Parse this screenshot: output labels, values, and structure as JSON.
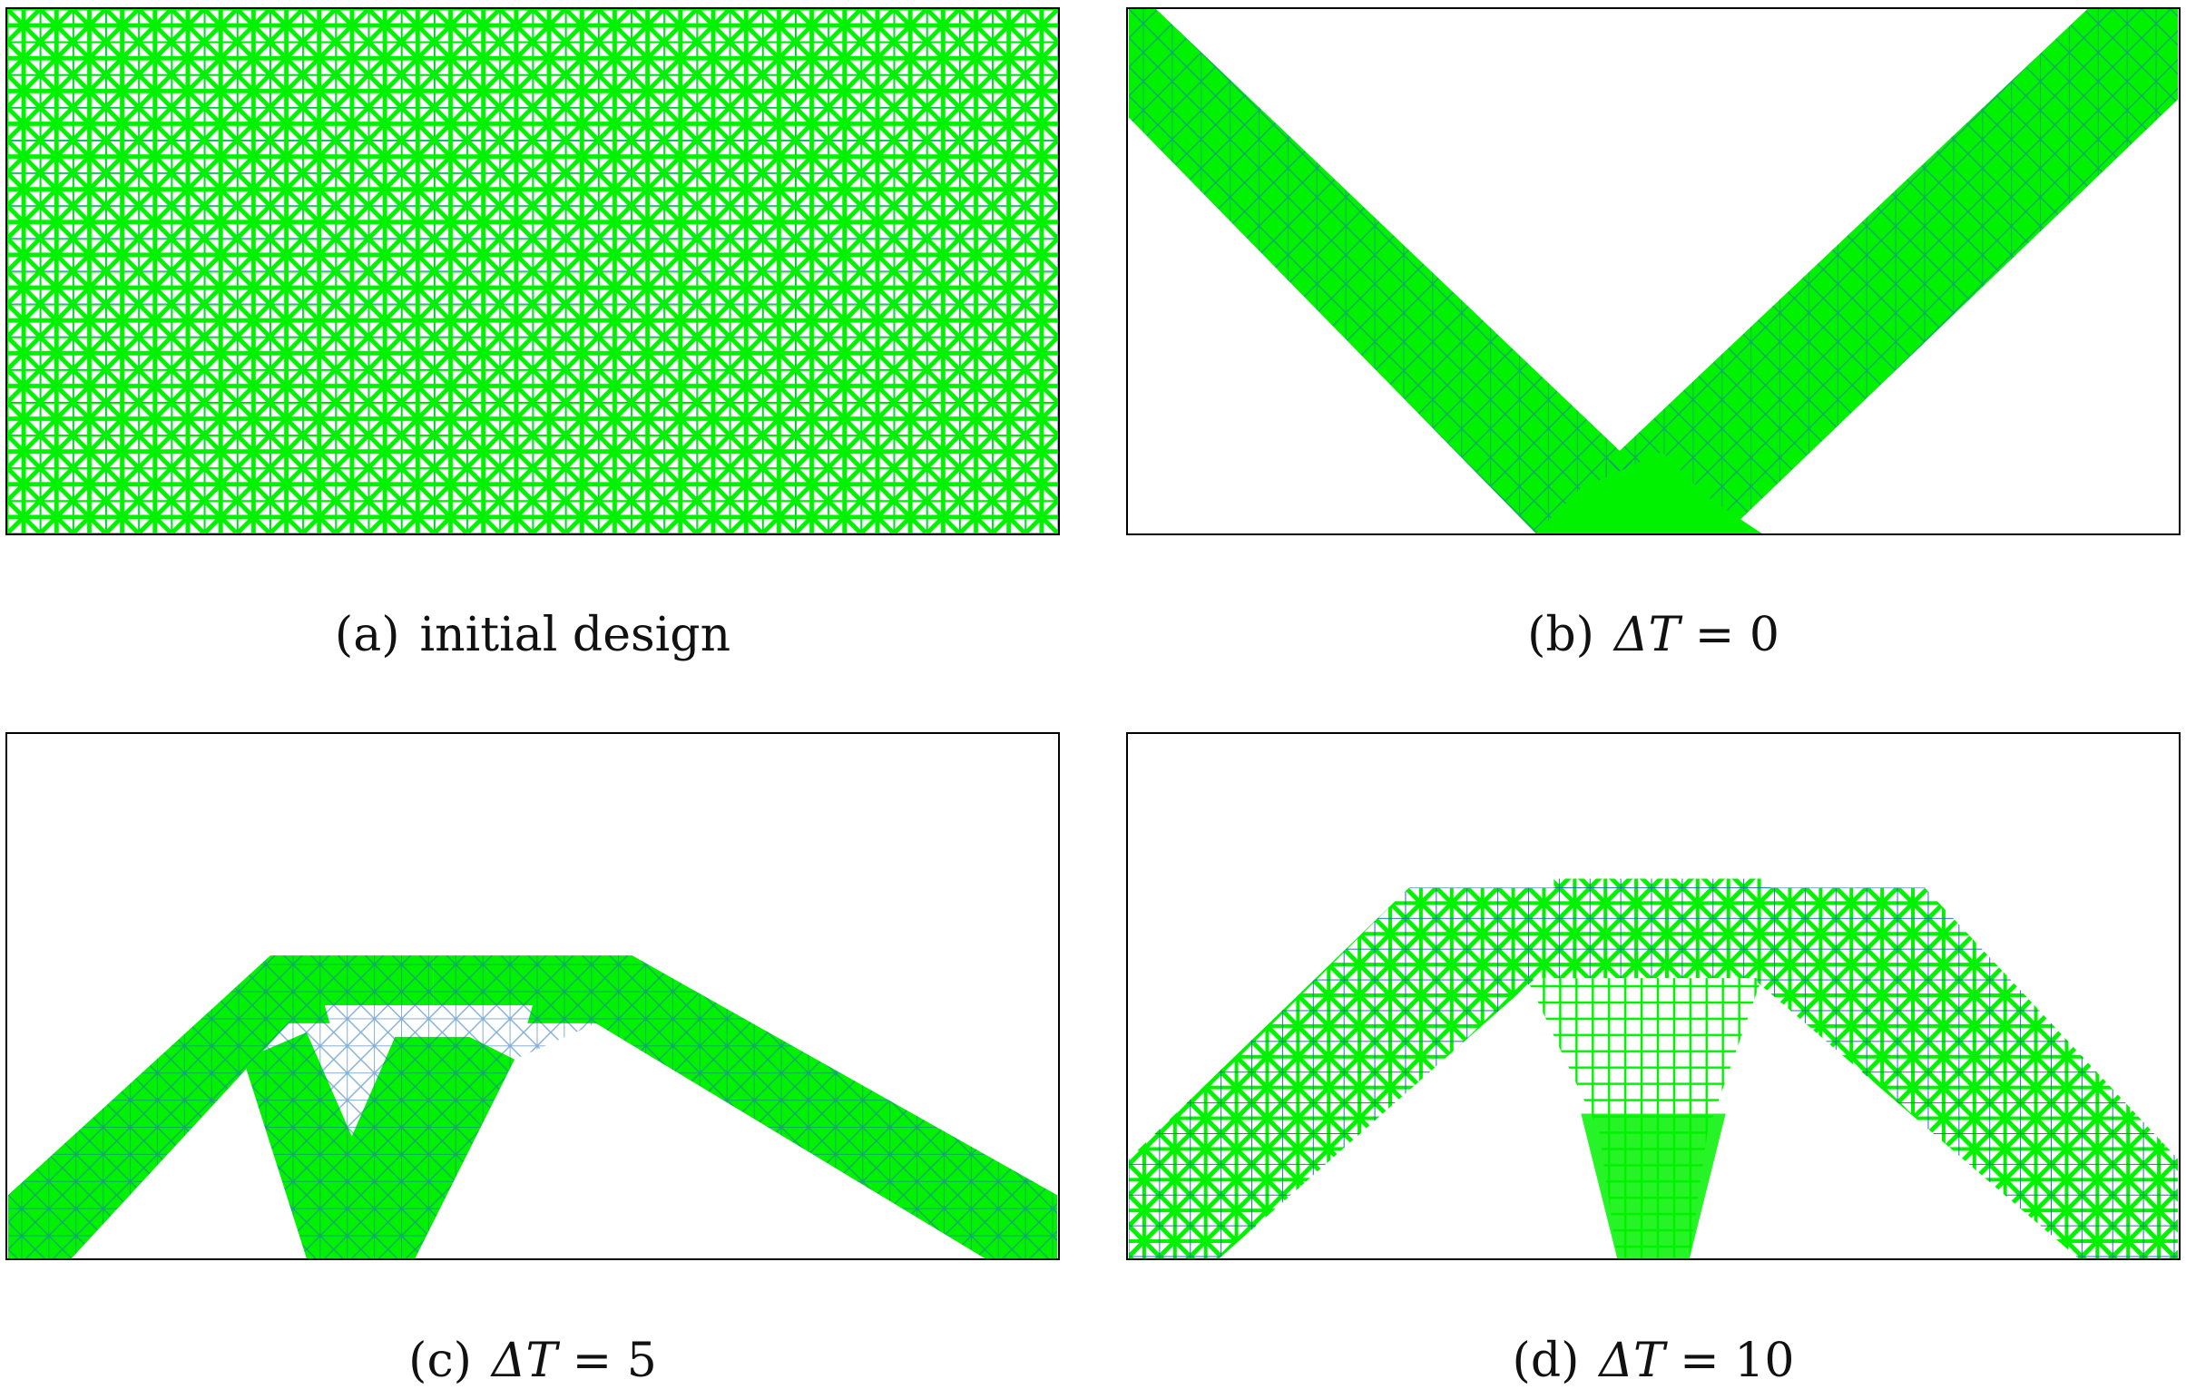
{
  "colors": {
    "member": "#00f200",
    "member_edge": "#1f6fb5",
    "frame": "#000000"
  },
  "panels": [
    {
      "id": "a",
      "label": "(a)",
      "text": "initial design"
    },
    {
      "id": "b",
      "label": "(b)",
      "math_prefix": "ΔT",
      "math_rest": " = 0"
    },
    {
      "id": "c",
      "label": "(c)",
      "math_prefix": "ΔT",
      "math_rest": " = 5"
    },
    {
      "id": "d",
      "label": "(d)",
      "math_prefix": "ΔT",
      "math_rest": " = 10"
    }
  ]
}
